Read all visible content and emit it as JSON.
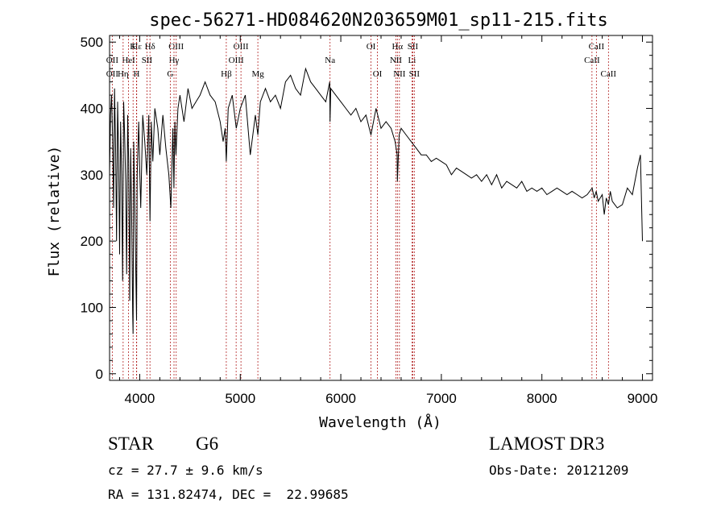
{
  "chart_data": {
    "type": "line",
    "title": "spec-56271-HD084620N203659M01_sp11-215.fits",
    "xlabel": "Wavelength (Å)",
    "ylabel": "Flux (relative)",
    "xlim": [
      3700,
      9100
    ],
    "ylim": [
      -10,
      510
    ],
    "xticks": [
      4000,
      5000,
      6000,
      7000,
      8000,
      9000
    ],
    "yticks": [
      0,
      100,
      200,
      300,
      400,
      500
    ],
    "grid": false,
    "line_color": "#000000",
    "marker_color": "#b22222",
    "series": [
      {
        "x": [
          3700,
          3710,
          3720,
          3730,
          3740,
          3750,
          3760,
          3770,
          3780,
          3790,
          3800,
          3810,
          3820,
          3830,
          3840,
          3850,
          3860,
          3870,
          3880,
          3890,
          3900,
          3910,
          3920,
          3930,
          3934,
          3940,
          3950,
          3960,
          3968,
          3975,
          3990,
          4000,
          4010,
          4030,
          4050,
          4070,
          4090,
          4102,
          4115,
          4130,
          4150,
          4180,
          4200,
          4230,
          4260,
          4290,
          4310,
          4330,
          4340,
          4350,
          4360,
          4380,
          4400,
          4440,
          4480,
          4520,
          4560,
          4600,
          4650,
          4700,
          4750,
          4800,
          4830,
          4850,
          4861,
          4880,
          4920,
          4960,
          5000,
          5050,
          5100,
          5150,
          5175,
          5200,
          5250,
          5300,
          5350,
          5400,
          5450,
          5500,
          5550,
          5600,
          5650,
          5700,
          5750,
          5800,
          5850,
          5890,
          5893,
          5900,
          5950,
          6000,
          6050,
          6100,
          6150,
          6200,
          6250,
          6300,
          6350,
          6400,
          6450,
          6500,
          6540,
          6560,
          6563,
          6580,
          6600,
          6650,
          6700,
          6750,
          6800,
          6850,
          6900,
          6950,
          7000,
          7050,
          7100,
          7150,
          7200,
          7250,
          7300,
          7350,
          7400,
          7450,
          7500,
          7550,
          7600,
          7650,
          7700,
          7750,
          7800,
          7850,
          7900,
          7950,
          8000,
          8050,
          8100,
          8150,
          8200,
          8250,
          8300,
          8350,
          8400,
          8450,
          8500,
          8520,
          8540,
          8560,
          8600,
          8620,
          8640,
          8662,
          8680,
          8700,
          8750,
          8800,
          8850,
          8900,
          8950,
          8980,
          9000
        ],
        "y": [
          300,
          390,
          420,
          360,
          250,
          430,
          340,
          200,
          410,
          330,
          180,
          380,
          300,
          140,
          410,
          360,
          290,
          150,
          390,
          320,
          110,
          340,
          230,
          90,
          60,
          350,
          270,
          160,
          80,
          300,
          380,
          310,
          250,
          390,
          350,
          300,
          390,
          230,
          380,
          320,
          400,
          370,
          330,
          390,
          340,
          300,
          250,
          370,
          280,
          380,
          330,
          400,
          420,
          380,
          430,
          400,
          410,
          420,
          440,
          420,
          410,
          380,
          350,
          370,
          320,
          400,
          420,
          370,
          400,
          420,
          330,
          390,
          360,
          410,
          430,
          410,
          420,
          400,
          440,
          450,
          430,
          420,
          460,
          440,
          430,
          420,
          410,
          440,
          380,
          430,
          420,
          410,
          400,
          390,
          400,
          380,
          390,
          360,
          400,
          370,
          380,
          370,
          350,
          330,
          290,
          360,
          370,
          360,
          350,
          340,
          330,
          330,
          320,
          325,
          320,
          315,
          300,
          310,
          305,
          300,
          295,
          300,
          290,
          300,
          285,
          300,
          280,
          290,
          285,
          280,
          290,
          275,
          280,
          275,
          280,
          270,
          275,
          280,
          275,
          270,
          275,
          270,
          265,
          270,
          280,
          265,
          275,
          260,
          270,
          240,
          265,
          255,
          275,
          260,
          250,
          255,
          280,
          270,
          310,
          330,
          200
        ]
      }
    ],
    "line_markers": [
      {
        "label": "Hε",
        "x": 3970,
        "row": 1
      },
      {
        "label": "K",
        "x": 3934,
        "row": 1
      },
      {
        "label": "Hδ",
        "x": 4102,
        "row": 1
      },
      {
        "label": "OII",
        "x": 3727,
        "row": 2
      },
      {
        "label": "HeI",
        "x": 3889,
        "row": 2
      },
      {
        "label": "SII",
        "x": 4072,
        "row": 2
      },
      {
        "label": "OII",
        "x": 3727,
        "row": 3
      },
      {
        "label": "Hη",
        "x": 3835,
        "row": 3
      },
      {
        "label": "H",
        "x": 3968,
        "row": 3
      },
      {
        "label": "OIII",
        "x": 4363,
        "row": 1
      },
      {
        "label": "Hγ",
        "x": 4341,
        "row": 2
      },
      {
        "label": "G",
        "x": 4304,
        "row": 3
      },
      {
        "label": "OIII",
        "x": 5007,
        "row": 1
      },
      {
        "label": "OIII",
        "x": 4959,
        "row": 2
      },
      {
        "label": "Hβ",
        "x": 4861,
        "row": 3
      },
      {
        "label": "Mg",
        "x": 5175,
        "row": 3
      },
      {
        "label": "Na",
        "x": 5893,
        "row": 2
      },
      {
        "label": "OI",
        "x": 6300,
        "row": 1
      },
      {
        "label": "OI",
        "x": 6364,
        "row": 3
      },
      {
        "label": "Hα",
        "x": 6563,
        "row": 1
      },
      {
        "label": "SII",
        "x": 6716,
        "row": 1
      },
      {
        "label": "NII",
        "x": 6548,
        "row": 2
      },
      {
        "label": "Li",
        "x": 6708,
        "row": 2
      },
      {
        "label": "NII",
        "x": 6583,
        "row": 3
      },
      {
        "label": "SII",
        "x": 6731,
        "row": 3
      },
      {
        "label": "CaII",
        "x": 8542,
        "row": 1
      },
      {
        "label": "CaII",
        "x": 8498,
        "row": 2
      },
      {
        "label": "CaII",
        "x": 8662,
        "row": 3
      }
    ]
  },
  "info": {
    "object_class": "STAR",
    "subclass": "G6",
    "redshift_line": "cz = 27.7 ± 9.6 km/s",
    "coords_line": "RA = 131.82474, DEC =  22.99685",
    "survey": "LAMOST DR3",
    "obs_date_line": "Obs-Date: 20121209"
  }
}
